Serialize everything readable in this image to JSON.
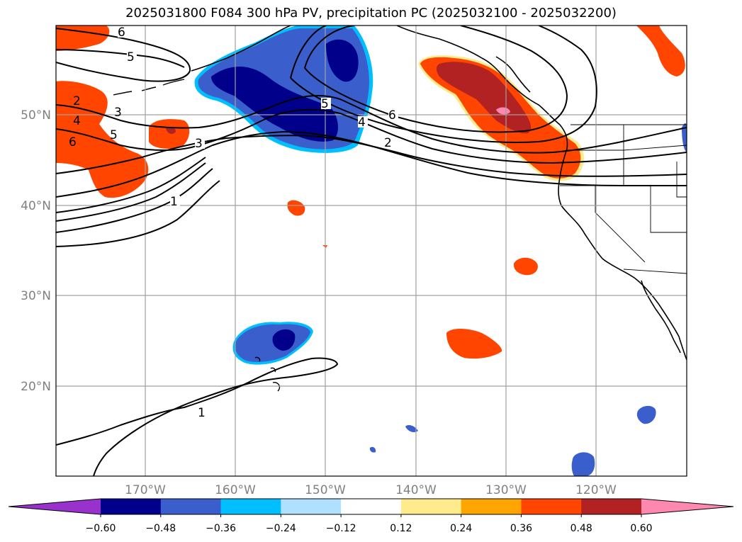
{
  "title": "2025031800 F084 300 hPa PV, precipitation PC (2025032100 - 2025032200)",
  "latitude_labels": [
    "50°N",
    "40°N",
    "30°N",
    "20°N"
  ],
  "longitude_labels": [
    "170°W",
    "160°W",
    "150°W",
    "140°W",
    "130°W",
    "120°W"
  ],
  "contour_labels": [
    "6",
    "5",
    "2",
    "3",
    "4",
    "5",
    "6",
    "3",
    "1",
    "5",
    "4",
    "6",
    "2",
    "1"
  ],
  "colorbar": {
    "tick_labels": [
      "−0.60",
      "−0.48",
      "−0.36",
      "−0.24",
      "−0.12",
      "0.12",
      "0.24",
      "0.36",
      "0.48",
      "0.60"
    ],
    "colors": [
      "#9932cc",
      "#00008b",
      "#3a5fcd",
      "#00bfff",
      "#b0e0ff",
      "#ffffff",
      "#ffeb8c",
      "#ffa500",
      "#ff4500",
      "#b22222",
      "#ff88b0"
    ]
  },
  "colors": {
    "coast": "#000000",
    "grid": "#a0a0a0",
    "contour": "#000000"
  }
}
